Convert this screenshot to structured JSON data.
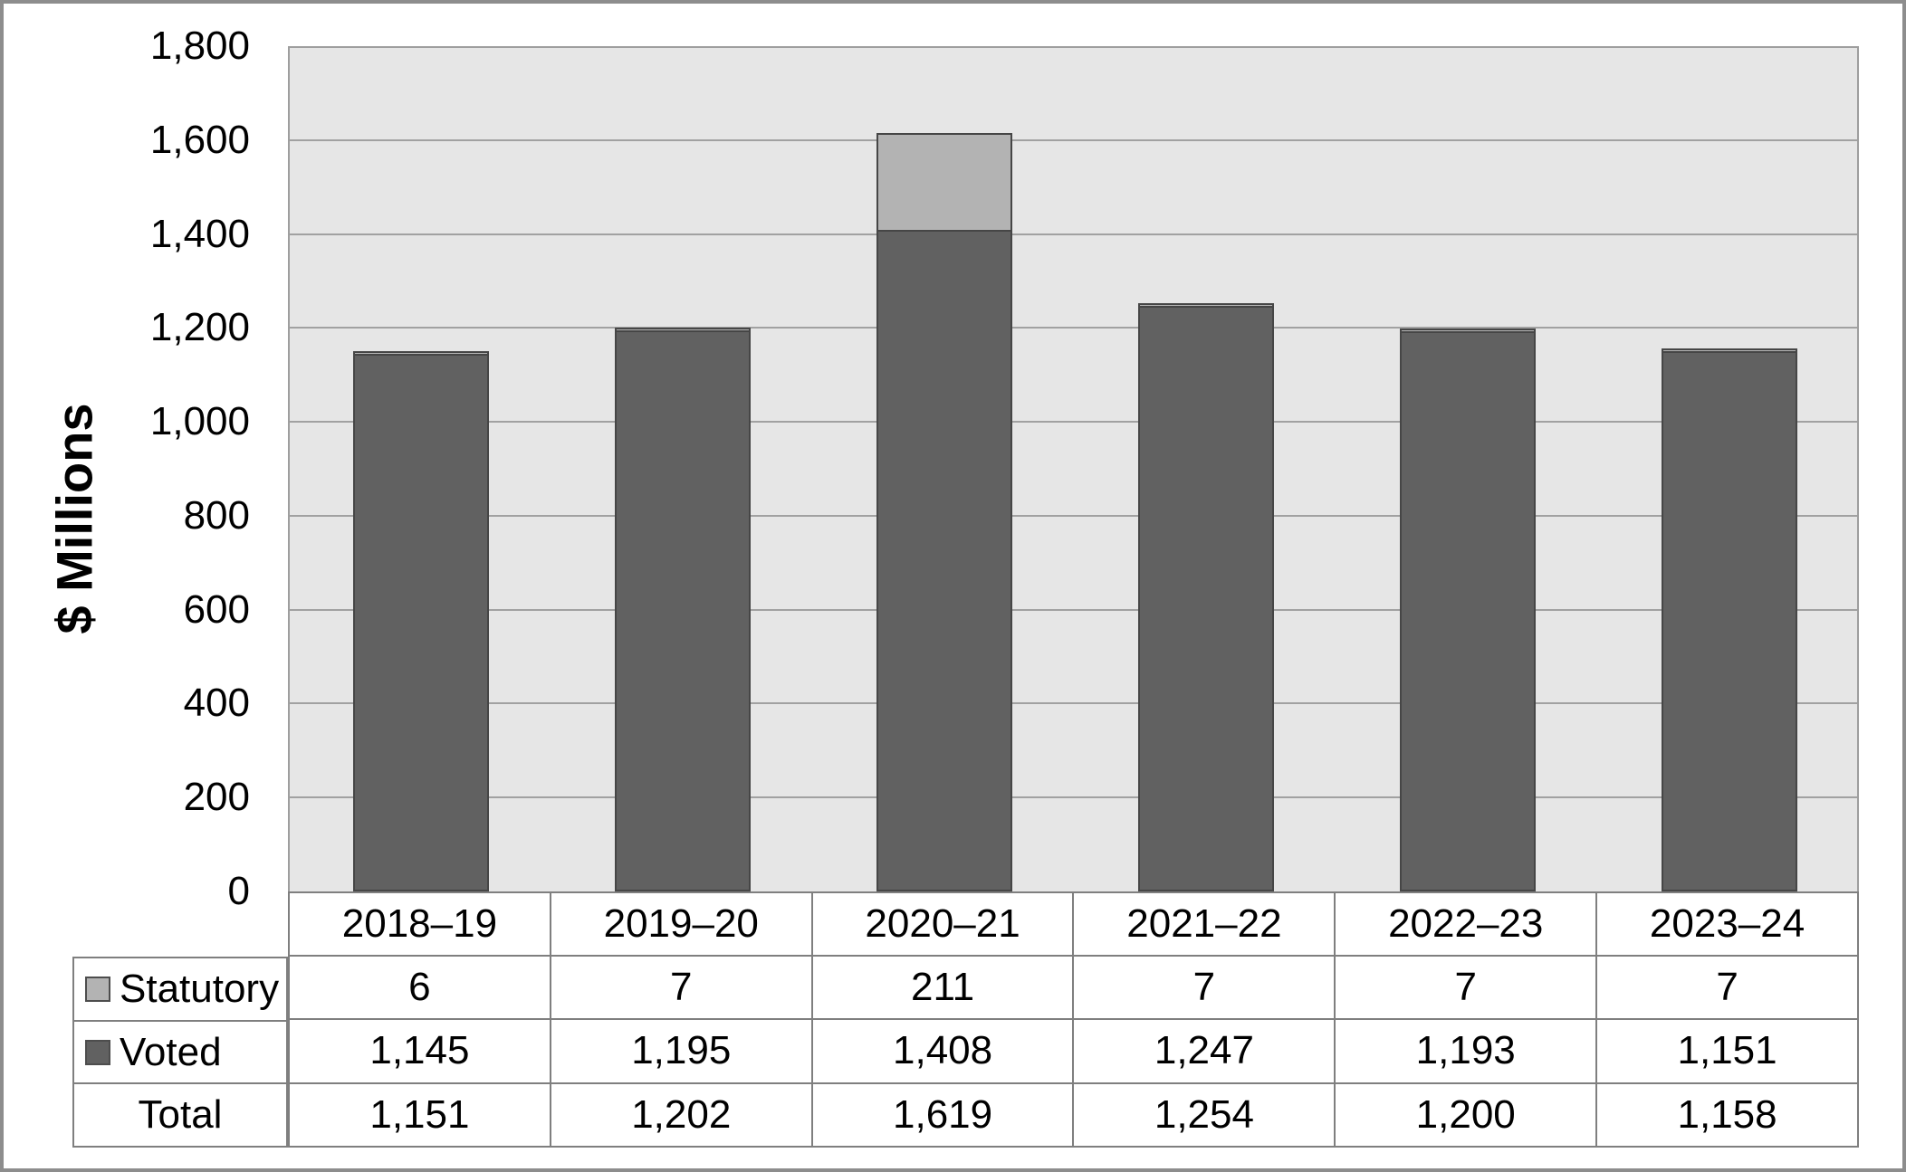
{
  "y_axis": {
    "title": "$ Millions",
    "tick_labels": [
      "0",
      "200",
      "400",
      "600",
      "800",
      "1,000",
      "1,200",
      "1,400",
      "1,600",
      "1,800"
    ]
  },
  "chart_data": {
    "type": "bar",
    "stacked": true,
    "title": "",
    "xlabel": "",
    "ylabel": "$ Millions",
    "ylim": [
      0,
      1800
    ],
    "ytick_step": 200,
    "grid": true,
    "legend_position": "table-left",
    "categories": [
      "2018–19",
      "2019–20",
      "2020–21",
      "2021–22",
      "2022–23",
      "2023–24"
    ],
    "series": [
      {
        "name": "Statutory",
        "values": [
          6,
          7,
          211,
          7,
          7,
          7
        ],
        "color": "#b3b3b3"
      },
      {
        "name": "Voted",
        "values": [
          1145,
          1195,
          1408,
          1247,
          1193,
          1151
        ],
        "color": "#616161"
      }
    ],
    "totals": {
      "name": "Total",
      "values": [
        1151,
        1202,
        1619,
        1254,
        1200,
        1158
      ]
    }
  },
  "colors": {
    "statutory_fill": "#b3b3b3",
    "voted_fill": "#616161",
    "bar_border": "#464646",
    "plot_background": "#e6e6e6",
    "gridline": "#a1a1a1",
    "table_border": "#7f7f7f",
    "outer_frame": "#8d8d8d"
  }
}
